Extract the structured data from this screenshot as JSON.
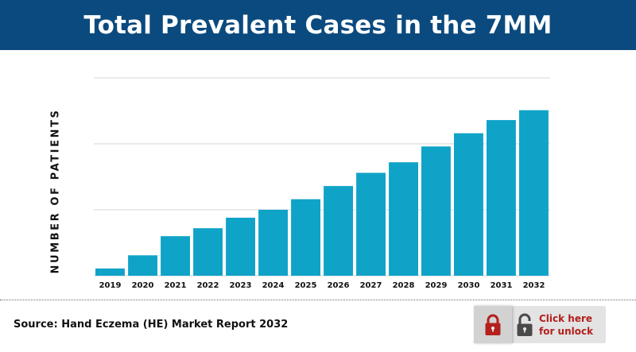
{
  "header": {
    "title": "Total Prevalent Cases in the 7MM"
  },
  "chart_data": {
    "type": "bar",
    "title": "Total Prevalent Cases in the 7MM",
    "ylabel": "NUMBER OF PATIENTS",
    "xlabel": "",
    "categories": [
      "2019",
      "2020",
      "2021",
      "2022",
      "2023",
      "2024",
      "2025",
      "2026",
      "2027",
      "2028",
      "2029",
      "2030",
      "2031",
      "2032"
    ],
    "values": [
      11,
      31,
      60,
      72,
      88,
      100,
      116,
      136,
      156,
      172,
      196,
      216,
      236,
      251
    ],
    "ylim": [
      0,
      300
    ],
    "y_tick_labels_shown": false,
    "grid": true,
    "bar_color": "#10a3c8"
  },
  "footer": {
    "source": "Source: Hand Eczema (HE) Market Report 2032",
    "unlock": {
      "line1": "Click here",
      "line2": "for unlock"
    }
  },
  "colors": {
    "header_bg": "#0b4a7e",
    "lock_red": "#b3201d",
    "lock_gray": "#4a4a4a"
  },
  "icons": {
    "locked": "padlock-closed-icon",
    "unlocked": "padlock-open-icon"
  }
}
